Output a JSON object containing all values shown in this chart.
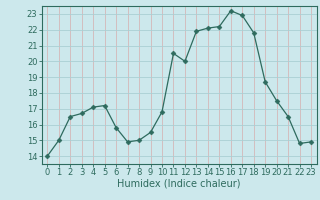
{
  "x": [
    0,
    1,
    2,
    3,
    4,
    5,
    6,
    7,
    8,
    9,
    10,
    11,
    12,
    13,
    14,
    15,
    16,
    17,
    18,
    19,
    20,
    21,
    22,
    23
  ],
  "y": [
    14.0,
    15.0,
    16.5,
    16.7,
    17.1,
    17.2,
    15.8,
    14.9,
    15.0,
    15.5,
    16.8,
    20.5,
    20.0,
    21.9,
    22.1,
    22.2,
    23.2,
    22.9,
    21.8,
    18.7,
    17.5,
    16.5,
    14.8,
    14.9
  ],
  "line_color": "#2e6b5e",
  "marker": "D",
  "marker_size": 2.5,
  "bg_color": "#cce8ec",
  "hgrid_color": "#aacfd4",
  "vgrid_color": "#d4b8b8",
  "tick_color": "#2e6b5e",
  "xlabel": "Humidex (Indice chaleur)",
  "ylim": [
    13.5,
    23.5
  ],
  "xlim": [
    -0.5,
    23.5
  ],
  "yticks": [
    14,
    15,
    16,
    17,
    18,
    19,
    20,
    21,
    22,
    23
  ],
  "xticks": [
    0,
    1,
    2,
    3,
    4,
    5,
    6,
    7,
    8,
    9,
    10,
    11,
    12,
    13,
    14,
    15,
    16,
    17,
    18,
    19,
    20,
    21,
    22,
    23
  ],
  "xlabel_fontsize": 7,
  "tick_fontsize": 6
}
